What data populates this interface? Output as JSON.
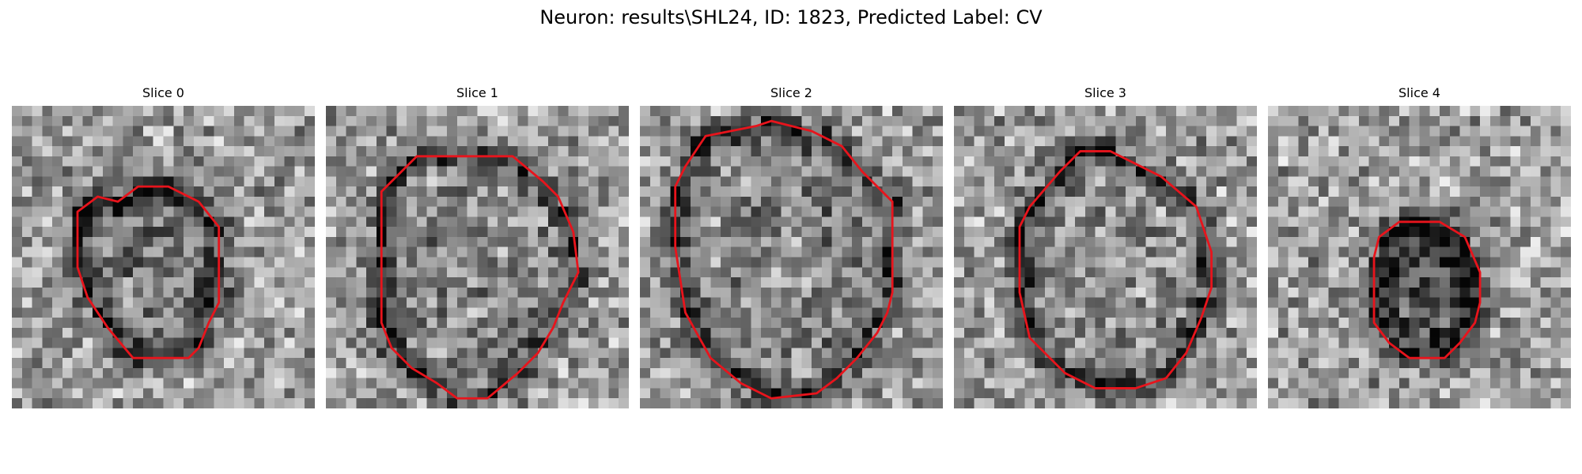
{
  "figure": {
    "title": "Neuron: results\\SHL24, ID: 1823, Predicted Label: CV"
  },
  "slices": [
    {
      "title": "Slice 0",
      "seed": 11,
      "dark_ring": 0.42,
      "dark_fill": 0.18
    },
    {
      "title": "Slice 1",
      "seed": 23,
      "dark_ring": 0.38,
      "dark_fill": 0.1
    },
    {
      "title": "Slice 2",
      "seed": 37,
      "dark_ring": 0.4,
      "dark_fill": 0.12
    },
    {
      "title": "Slice 3",
      "seed": 51,
      "dark_ring": 0.45,
      "dark_fill": 0.08
    },
    {
      "title": "Slice 4",
      "seed": 67,
      "dark_ring": 0.3,
      "dark_fill": 0.45
    }
  ],
  "colors": {
    "contour": "#e8141c",
    "background": "#ffffff"
  }
}
